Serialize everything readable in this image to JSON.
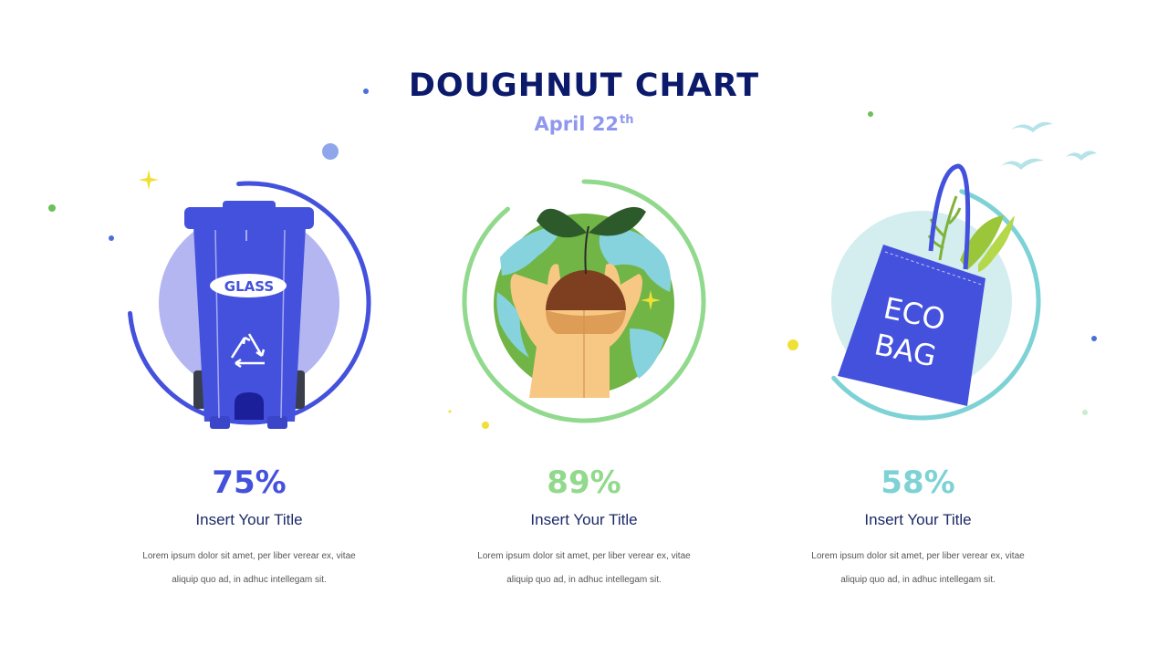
{
  "title": "DOUGHNUT CHART",
  "subtitle": {
    "text": "April 22",
    "sup": "th"
  },
  "colors": {
    "title": "#0c1a6b",
    "subtitle": "#8f98ee",
    "blue": "#4451dd",
    "green": "#91d98c",
    "teal": "#7dd2d6",
    "heading": "#1c2a68"
  },
  "icons": [
    "glass-recycling-bin-icon",
    "hands-holding-earth-icon",
    "eco-bag-icon"
  ],
  "icon_text": {
    "bin_label": "GLASS",
    "bag_line1": "ECO",
    "bag_line2": "BAG"
  },
  "chart_data": {
    "type": "pie",
    "variant": "doughnut",
    "series": [
      {
        "value": 75,
        "label": "75%",
        "title": "Insert Your Title",
        "color": "#4451dd",
        "icon": "glass-recycling-bin-icon"
      },
      {
        "value": 89,
        "label": "89%",
        "title": "Insert Your Title",
        "color": "#91d98c",
        "icon": "hands-holding-earth-icon"
      },
      {
        "value": 58,
        "label": "58%",
        "title": "Insert Your Title",
        "color": "#7dd2d6",
        "icon": "eco-bag-icon"
      }
    ]
  },
  "cards": [
    {
      "desc1": "Lorem ipsum dolor sit amet, per liber verear ex, vitae",
      "desc2": "aliquip quo ad, in adhuc intellegam sit."
    },
    {
      "desc1": "Lorem ipsum dolor sit amet, per liber verear ex, vitae",
      "desc2": "aliquip quo ad, in adhuc intellegam sit."
    },
    {
      "desc1": "Lorem ipsum dolor sit amet, per liber verear ex, vitae",
      "desc2": "aliquip quo ad, in adhuc intellegam sit."
    }
  ]
}
